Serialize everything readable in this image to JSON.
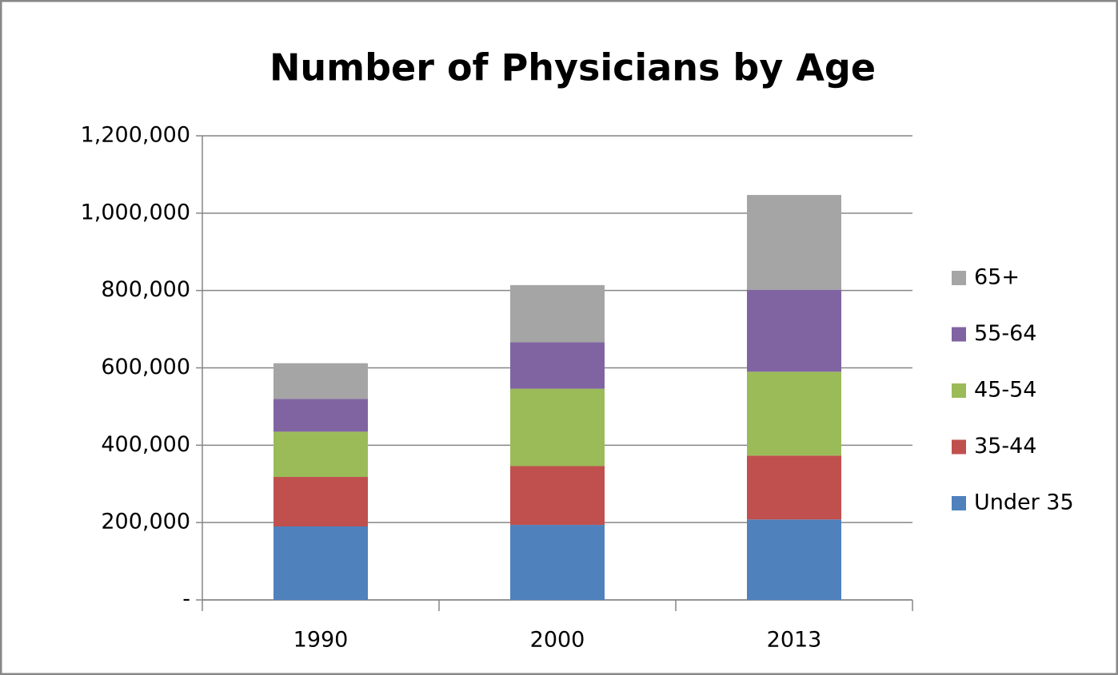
{
  "chart_data": {
    "type": "stacked_bar",
    "title": "Number of Physicians by Age",
    "categories": [
      "1990",
      "2000",
      "2013"
    ],
    "series": [
      {
        "name": "Under 35",
        "color": "#4f81bd",
        "values": [
          190000,
          194000,
          208000
        ]
      },
      {
        "name": "35-44",
        "color": "#c0504d",
        "values": [
          128000,
          152000,
          165000
        ]
      },
      {
        "name": "45-54",
        "color": "#9bbb59",
        "values": [
          117000,
          200000,
          217000
        ]
      },
      {
        "name": "55-64",
        "color": "#8064a2",
        "values": [
          85000,
          120000,
          212000
        ]
      },
      {
        "name": "65+",
        "color": "#a5a5a5",
        "values": [
          92000,
          148000,
          245000
        ]
      }
    ],
    "ylim": [
      0,
      1200000
    ],
    "yticks": [
      {
        "value": 0,
        "label": "-"
      },
      {
        "value": 200000,
        "label": "200,000"
      },
      {
        "value": 400000,
        "label": "400,000"
      },
      {
        "value": 600000,
        "label": "600,000"
      },
      {
        "value": 800000,
        "label": "800,000"
      },
      {
        "value": 1000000,
        "label": "1,000,000"
      },
      {
        "value": 1200000,
        "label": "1,200,000"
      }
    ],
    "grid": true,
    "legend": "right"
  }
}
